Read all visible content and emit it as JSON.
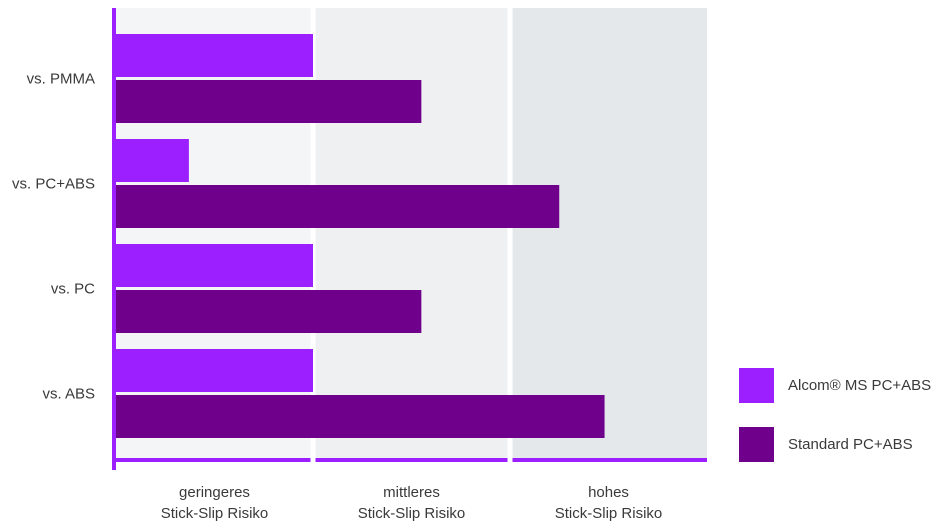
{
  "chart_data": {
    "type": "bar",
    "orientation": "horizontal",
    "categories": [
      "vs. PMMA",
      "vs. PC+ABS",
      "vs. PC",
      "vs. ABS"
    ],
    "series": [
      {
        "name": "Alcom® MS PC+ABS",
        "values": [
          1.0,
          0.37,
          1.0,
          1.0
        ],
        "color": "#9b1fff"
      },
      {
        "name": "Standard PC+ABS",
        "values": [
          1.55,
          2.25,
          1.55,
          2.48
        ],
        "color": "#6e008c"
      }
    ],
    "zones": [
      {
        "line1": "geringeres",
        "line2": "Stick-Slip Risiko",
        "range": [
          0,
          1
        ],
        "color": "#f4f5f6"
      },
      {
        "line1": "mittleres",
        "line2": "Stick-Slip Risiko",
        "range": [
          1,
          2
        ],
        "color": "#eff0f2"
      },
      {
        "line1": "hohes",
        "line2": "Stick-Slip Risiko",
        "range": [
          2,
          3
        ],
        "color": "#e5e8eb"
      }
    ],
    "xlim": [
      0,
      3
    ],
    "axis_color": "#9b1fff",
    "legend_position": "right",
    "grid": false
  }
}
